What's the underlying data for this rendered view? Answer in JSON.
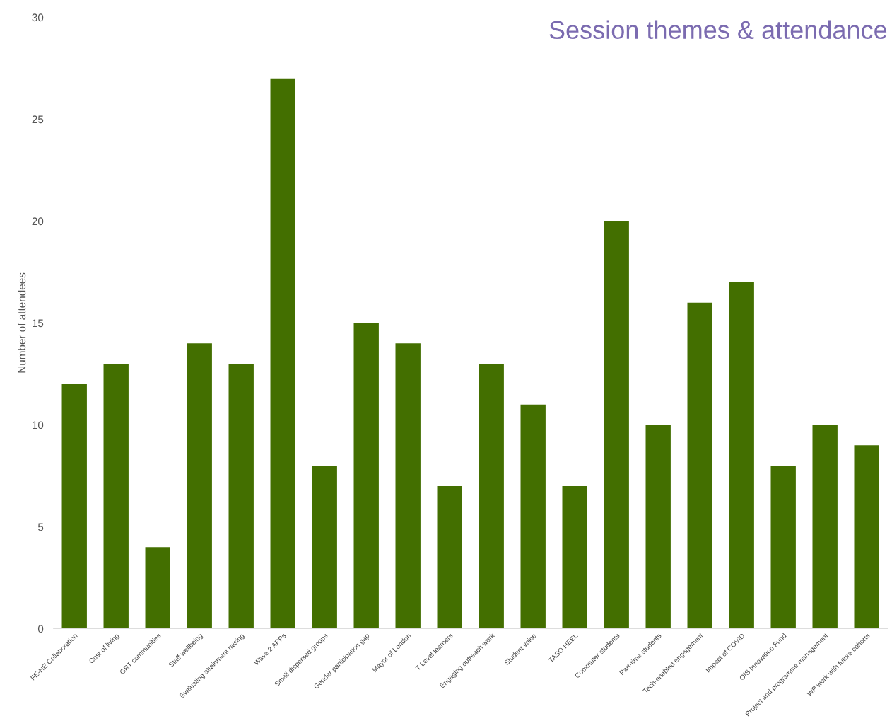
{
  "chart_data": {
    "type": "bar",
    "title": "Session themes & attendance",
    "ylabel": "Number of attendees",
    "categories": [
      "FE-HE Collaboration",
      "Cost of living",
      "GRT communities",
      "Staff wellbeing",
      "Evaluating attainment raising",
      "Wave 2 APPs",
      "Small dispersed groups",
      "Gender participation gap",
      "Mayor of London",
      "T Level learners",
      "Engaging outreach work",
      "Student voice",
      "TASO HEEL",
      "Commuter students",
      "Part-time students",
      "Tech-enabled engagement",
      "Impact of COVID",
      "OfS Innovation Fund",
      "Project and programme management",
      "WP work with future cohorts"
    ],
    "values": [
      12,
      13,
      4,
      14,
      13,
      27,
      8,
      15,
      14,
      7,
      13,
      11,
      7,
      20,
      10,
      16,
      17,
      8,
      10,
      9
    ],
    "color": "#436f00",
    "ylim": [
      0,
      30
    ],
    "yticks": [
      0,
      5,
      10,
      15,
      20,
      25,
      30
    ],
    "grid": false,
    "legend": false
  }
}
